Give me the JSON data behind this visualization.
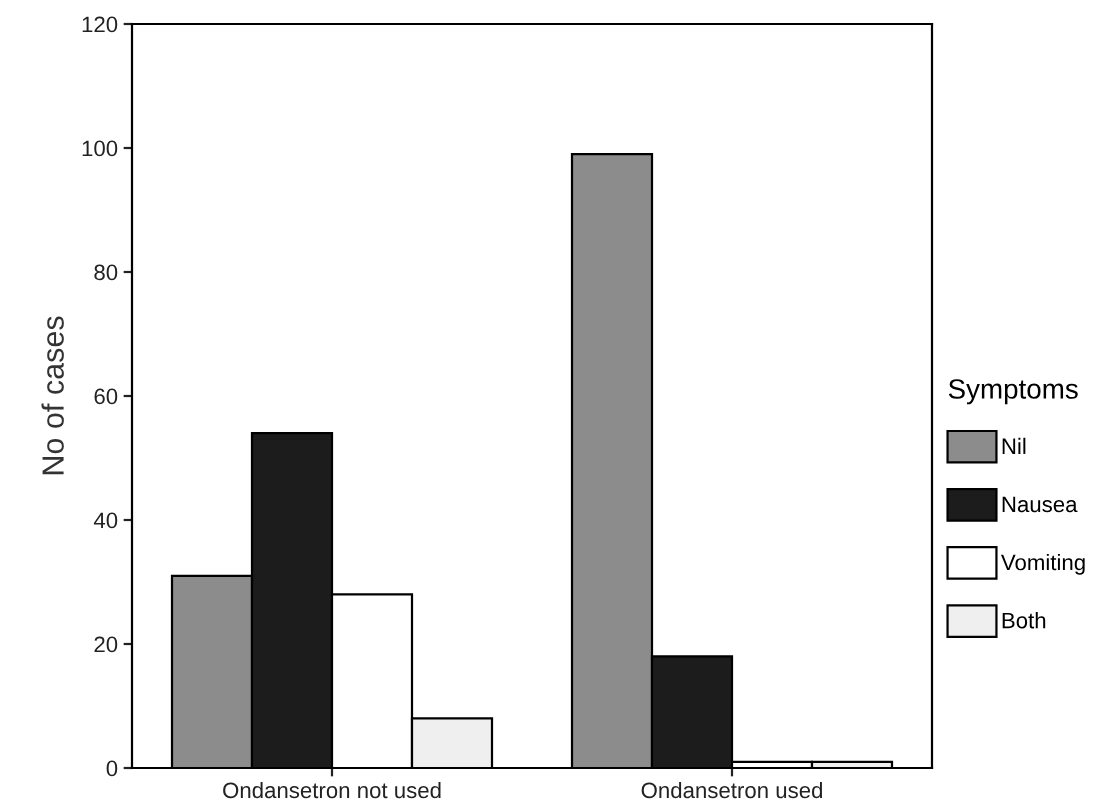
{
  "chart_data": {
    "type": "bar",
    "ylabel": "No of cases",
    "legend_title": "Symptoms",
    "legend": "right",
    "categories": [
      "Ondansetron not used",
      "Ondansetron used"
    ],
    "series": [
      {
        "name": "Nil",
        "color": "#8c8c8c",
        "values": [
          31,
          99
        ]
      },
      {
        "name": "Nausea",
        "color": "#1c1c1c",
        "values": [
          54,
          18
        ]
      },
      {
        "name": "Vomiting",
        "color": "#ffffff",
        "values": [
          28,
          1
        ]
      },
      {
        "name": "Both",
        "color": "#efefef",
        "values": [
          8,
          1
        ]
      }
    ],
    "ylim": [
      0,
      120
    ],
    "yticks": [
      0,
      20,
      40,
      60,
      80,
      100,
      120
    ],
    "grid": false
  }
}
